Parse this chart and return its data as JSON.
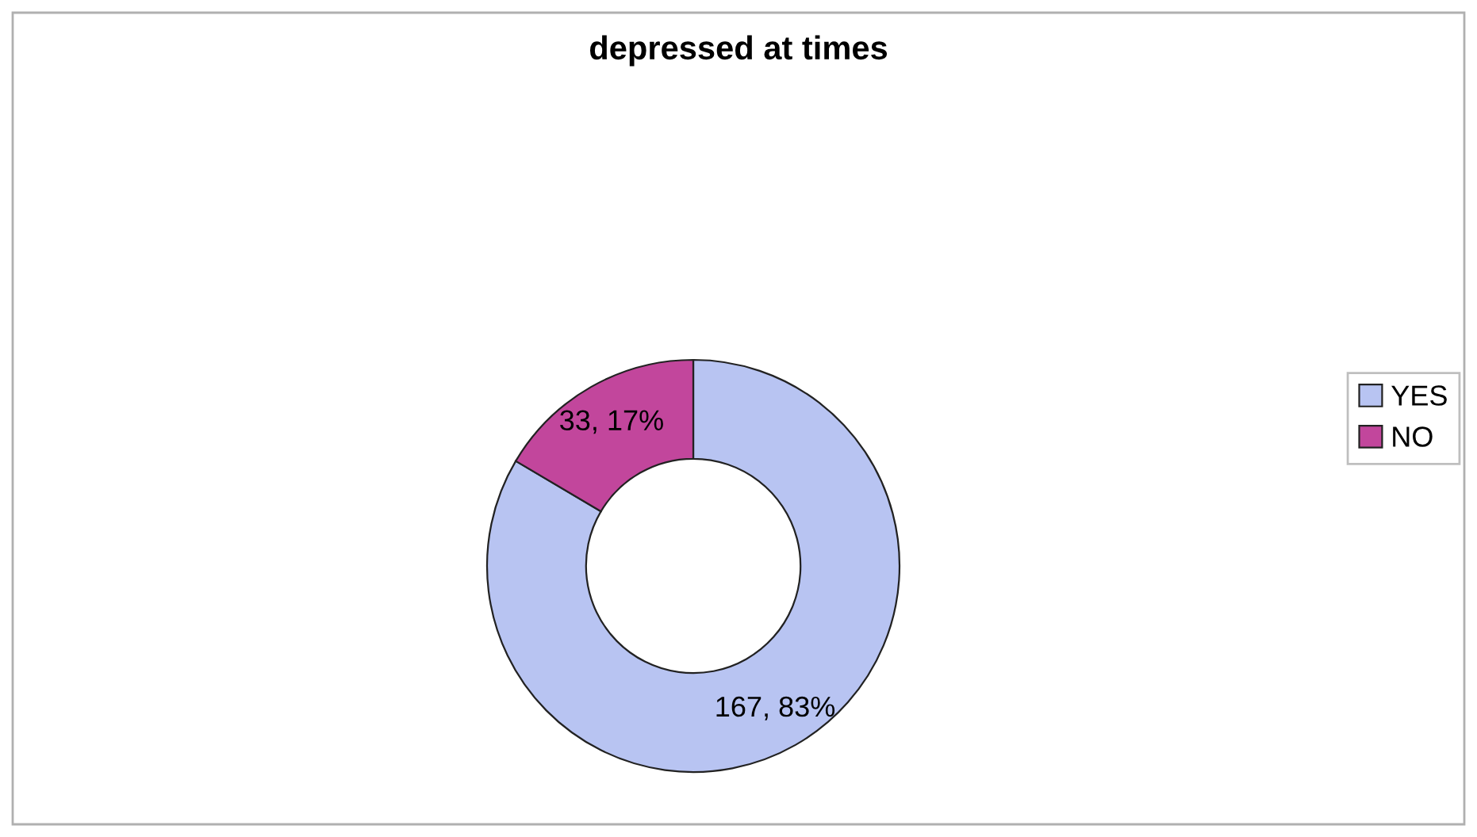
{
  "chart_data": {
    "type": "donut",
    "title": "depressed at times",
    "categories": [
      "YES",
      "NO"
    ],
    "values": [
      167,
      33
    ],
    "colors": [
      "#b8c4f2",
      "#c2469c"
    ],
    "value_labels": [
      "167, 83%",
      "33, 17%"
    ],
    "legend": "right"
  }
}
